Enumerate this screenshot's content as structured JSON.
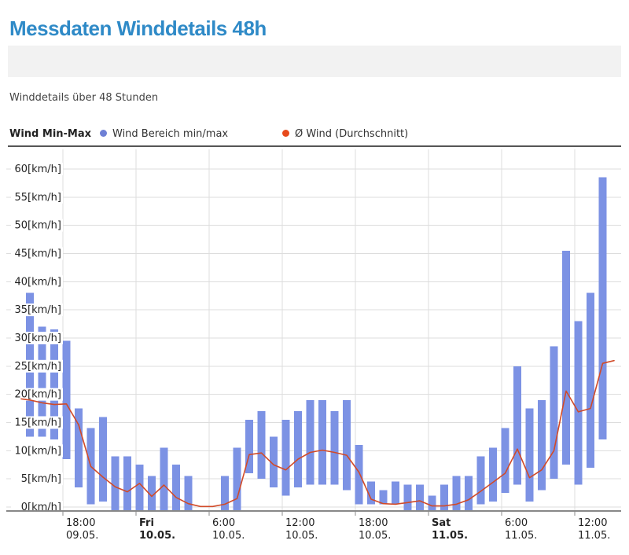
{
  "page": {
    "title": "Messdaten Winddetails 48h",
    "subtitle": "Winddetails über 48 Stunden"
  },
  "legend": {
    "heading": "Wind Min-Max",
    "series": [
      {
        "label": "Wind Bereich min/max",
        "marker": "dot",
        "color": "#6E80D5"
      },
      {
        "label": "Ø Wind (Durchschnitt)",
        "marker": "dot",
        "color": "#E74A1C"
      }
    ]
  },
  "colors": {
    "title": "#2F8AC7",
    "bar": "#7C92E4",
    "line": "#D14A28",
    "grid": "#DDDDDD",
    "axis": "#888888",
    "panel": "#F2F2F2",
    "label_text": "#222222",
    "sub_text": "#444444"
  },
  "chart_data": {
    "type": "bar",
    "subtype": "range-bars-with-average-line",
    "unit": "km/h",
    "ylim": [
      0,
      60
    ],
    "y_tick_step": 5,
    "grid": true,
    "legend_position": "top",
    "y_ticks": [
      "0[km/h]",
      "5[km/h]",
      "10[km/h]",
      "15[km/h]",
      "20[km/h]",
      "25[km/h]",
      "30[km/h]",
      "35[km/h]",
      "40[km/h]",
      "45[km/h]",
      "50[km/h]",
      "55[km/h]",
      "60[km/h]"
    ],
    "x_ticks": [
      {
        "time": "18:00",
        "date": "09.05.",
        "bold": false,
        "bar_index": 3
      },
      {
        "time": "Fri",
        "date": "10.05.",
        "bold": true,
        "bar_index": 9
      },
      {
        "time": "6:00",
        "date": "10.05.",
        "bold": false,
        "bar_index": 15
      },
      {
        "time": "12:00",
        "date": "10.05.",
        "bold": false,
        "bar_index": 21
      },
      {
        "time": "18:00",
        "date": "10.05.",
        "bold": false,
        "bar_index": 27
      },
      {
        "time": "Sat",
        "date": "11.05.",
        "bold": true,
        "bar_index": 33
      },
      {
        "time": "6:00",
        "date": "11.05.",
        "bold": false,
        "bar_index": 39
      },
      {
        "time": "12:00",
        "date": "11.05.",
        "bold": false,
        "bar_index": 45
      }
    ],
    "series": [
      {
        "name": "Wind Bereich min/max",
        "kind": "range",
        "bars_min_max": [
          [
            12.5,
            38
          ],
          [
            12.5,
            32
          ],
          [
            12,
            31.5
          ],
          [
            8.5,
            29.5
          ],
          [
            3.5,
            17.5
          ],
          [
            0.5,
            14
          ],
          [
            1,
            16
          ],
          [
            0,
            9
          ],
          [
            0,
            9
          ],
          [
            0,
            7.5
          ],
          [
            0,
            5.5
          ],
          [
            0,
            10.5
          ],
          [
            0,
            7.5
          ],
          [
            0,
            5.5
          ],
          [
            0,
            0
          ],
          [
            0,
            0
          ],
          [
            0,
            5.5
          ],
          [
            0,
            10.5
          ],
          [
            6,
            15.5
          ],
          [
            5,
            17
          ],
          [
            3.5,
            12.5
          ],
          [
            2,
            15.5
          ],
          [
            3.5,
            17
          ],
          [
            4,
            19
          ],
          [
            4,
            19
          ],
          [
            4,
            17
          ],
          [
            3,
            19
          ],
          [
            0.5,
            11
          ],
          [
            0.5,
            4.5
          ],
          [
            0.5,
            3
          ],
          [
            0.5,
            4.5
          ],
          [
            0,
            4
          ],
          [
            0,
            4
          ],
          [
            0,
            2
          ],
          [
            0,
            4
          ],
          [
            0,
            5.5
          ],
          [
            0,
            5.5
          ],
          [
            0.5,
            9
          ],
          [
            1,
            10.5
          ],
          [
            2.5,
            14
          ],
          [
            4,
            25
          ],
          [
            1,
            17.5
          ],
          [
            3,
            19
          ],
          [
            5,
            28.5
          ],
          [
            7.5,
            45.5
          ],
          [
            4,
            33
          ],
          [
            7,
            38
          ],
          [
            12,
            58.5
          ]
        ]
      },
      {
        "name": "Ø Wind (Durchschnitt)",
        "kind": "line",
        "values": [
          19,
          18.5,
          18.2,
          18.3,
          14.6,
          7.2,
          5.3,
          3.6,
          2.7,
          4.2,
          1.9,
          3.9,
          1.7,
          0.6,
          0.1,
          0.1,
          0.5,
          1.5,
          9.3,
          9.6,
          7.5,
          6.6,
          8.5,
          9.7,
          10.1,
          9.7,
          9.2,
          6.2,
          1.4,
          0.6,
          0.5,
          0.8,
          1.1,
          0.2,
          0.2,
          0.5,
          1.3,
          2.8,
          4.4,
          6,
          10.3,
          5.2,
          6.6,
          10,
          20.6,
          16.9,
          17.5,
          25.5
        ],
        "edge_start_value": 19.2,
        "edge_end_value": 26
      }
    ]
  }
}
